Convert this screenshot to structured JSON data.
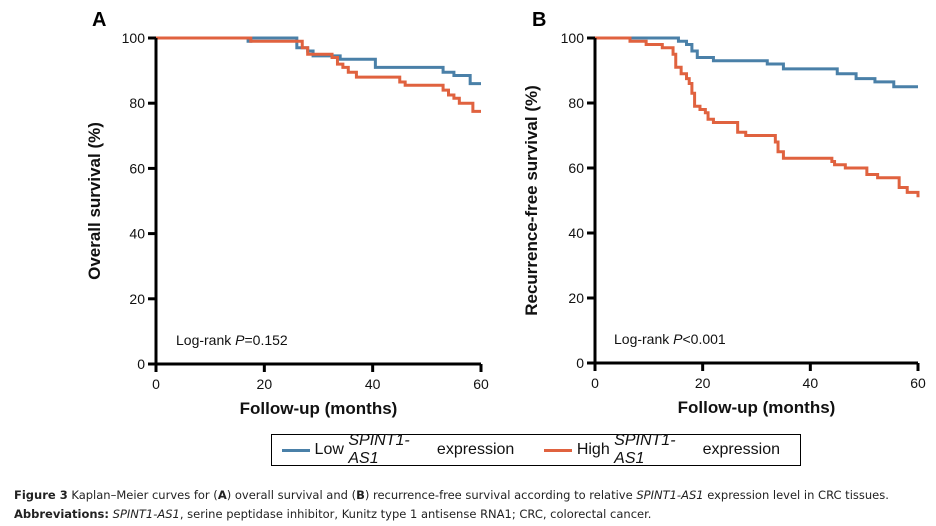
{
  "chart_data": [
    {
      "type": "line",
      "panel_label": "A",
      "title": "",
      "xlabel": "Follow-up (months)",
      "ylabel": "Overall survival (%)",
      "xlim": [
        0,
        60
      ],
      "ylim": [
        0,
        100
      ],
      "xticks": [
        "0",
        "20",
        "40",
        "60"
      ],
      "yticks": [
        "0",
        "20",
        "40",
        "60",
        "80",
        "100"
      ],
      "grid": false,
      "annotation": {
        "prefix": "Log-rank ",
        "italic": "P",
        "suffix": "=0.152"
      },
      "series": [
        {
          "name": "Low SPINT1-AS1 expression",
          "color": "#4a80a8",
          "steps": [
            [
              0,
              100
            ],
            [
              17,
              99
            ],
            [
              17.5,
              100
            ],
            [
              25,
              100
            ],
            [
              26,
              97
            ],
            [
              28,
              96
            ],
            [
              29,
              94.5
            ],
            [
              33,
              94.5
            ],
            [
              34,
              93.5
            ],
            [
              40,
              93.5
            ],
            [
              40.5,
              91
            ],
            [
              52,
              91
            ],
            [
              53,
              89.5
            ],
            [
              55,
              88.5
            ],
            [
              57.5,
              88.5
            ],
            [
              58,
              86
            ],
            [
              60,
              86
            ]
          ]
        },
        {
          "name": "High SPINT1-AS1 expression",
          "color": "#e0623f",
          "steps": [
            [
              0,
              100
            ],
            [
              17,
              100
            ],
            [
              17.5,
              99
            ],
            [
              26.5,
              99
            ],
            [
              27,
              97
            ],
            [
              28,
              95
            ],
            [
              32,
              95
            ],
            [
              32.5,
              94
            ],
            [
              33.5,
              92
            ],
            [
              34.5,
              91
            ],
            [
              35.5,
              89.5
            ],
            [
              37,
              88
            ],
            [
              44,
              88
            ],
            [
              45,
              86.5
            ],
            [
              46,
              85.5
            ],
            [
              52,
              85.5
            ],
            [
              53,
              84
            ],
            [
              54,
              82.5
            ],
            [
              55,
              81.5
            ],
            [
              56,
              80
            ],
            [
              58,
              80
            ],
            [
              58.5,
              77.5
            ],
            [
              60,
              77.5
            ]
          ]
        }
      ]
    },
    {
      "type": "line",
      "panel_label": "B",
      "title": "",
      "xlabel": "Follow-up (months)",
      "ylabel": "Recurrence-free survival (%)",
      "xlim": [
        0,
        60
      ],
      "ylim": [
        0,
        100
      ],
      "xticks": [
        "0",
        "20",
        "40",
        "60"
      ],
      "yticks": [
        "0",
        "20",
        "40",
        "60",
        "80",
        "100"
      ],
      "grid": false,
      "annotation": {
        "prefix": "Log-rank ",
        "italic": "P",
        "suffix": "<0.001"
      },
      "series": [
        {
          "name": "Low SPINT1-AS1 expression",
          "color": "#4a80a8",
          "steps": [
            [
              0,
              100
            ],
            [
              15,
              100
            ],
            [
              15.5,
              99
            ],
            [
              17,
              98
            ],
            [
              18,
              96
            ],
            [
              19,
              94
            ],
            [
              21.5,
              94
            ],
            [
              22,
              93
            ],
            [
              31.5,
              93
            ],
            [
              32,
              92
            ],
            [
              34.5,
              92
            ],
            [
              35,
              90.5
            ],
            [
              44.5,
              90.5
            ],
            [
              45,
              89
            ],
            [
              48,
              89
            ],
            [
              48.5,
              87.5
            ],
            [
              51.5,
              87.5
            ],
            [
              52,
              86.5
            ],
            [
              55,
              86.5
            ],
            [
              55.5,
              85
            ],
            [
              60,
              85
            ]
          ]
        },
        {
          "name": "High SPINT1-AS1 expression",
          "color": "#e0623f",
          "steps": [
            [
              0,
              100
            ],
            [
              6,
              100
            ],
            [
              6.5,
              99
            ],
            [
              9,
              99
            ],
            [
              9.5,
              98
            ],
            [
              12,
              98
            ],
            [
              12.5,
              97
            ],
            [
              14,
              97
            ],
            [
              14.5,
              95
            ],
            [
              15,
              91
            ],
            [
              16,
              89
            ],
            [
              17,
              87.5
            ],
            [
              17.5,
              86
            ],
            [
              18,
              83
            ],
            [
              18.5,
              79
            ],
            [
              19.5,
              78
            ],
            [
              20.5,
              77
            ],
            [
              21,
              75
            ],
            [
              22,
              74
            ],
            [
              26,
              74
            ],
            [
              26.5,
              71
            ],
            [
              28,
              70
            ],
            [
              33,
              70
            ],
            [
              33.5,
              68
            ],
            [
              34,
              65
            ],
            [
              35,
              63
            ],
            [
              43,
              63
            ],
            [
              44,
              62
            ],
            [
              44.5,
              61
            ],
            [
              46,
              61
            ],
            [
              46.5,
              60
            ],
            [
              50,
              60
            ],
            [
              50.5,
              58
            ],
            [
              52,
              58
            ],
            [
              52.5,
              57
            ],
            [
              56,
              57
            ],
            [
              56.5,
              54
            ],
            [
              58,
              52.5
            ],
            [
              60,
              52.5
            ],
            [
              60,
              51
            ]
          ]
        }
      ]
    }
  ],
  "legend": {
    "items": [
      {
        "prefix": "Low ",
        "italic": "SPINT1-AS1",
        "suffix": " expression",
        "color": "#4a80a8"
      },
      {
        "prefix": "High ",
        "italic": "SPINT1-AS1",
        "suffix": " expression",
        "color": "#e0623f"
      }
    ]
  },
  "caption": {
    "figure_label": "Figure 3",
    "text_1": " Kaplan–Meier curves for (",
    "a": "A",
    "text_2": ") overall survival and (",
    "b": "B",
    "text_3": ") recurrence-free survival according to relative ",
    "gene": "SPINT1-AS1",
    "text_4": " expression level in CRC tissues.",
    "abbr_label": "Abbreviations:",
    "abbr_gene": "SPINT1-AS1",
    "abbr_text": ", serine peptidase inhibitor, Kunitz type 1 antisense RNA1; CRC, colorectal cancer."
  }
}
